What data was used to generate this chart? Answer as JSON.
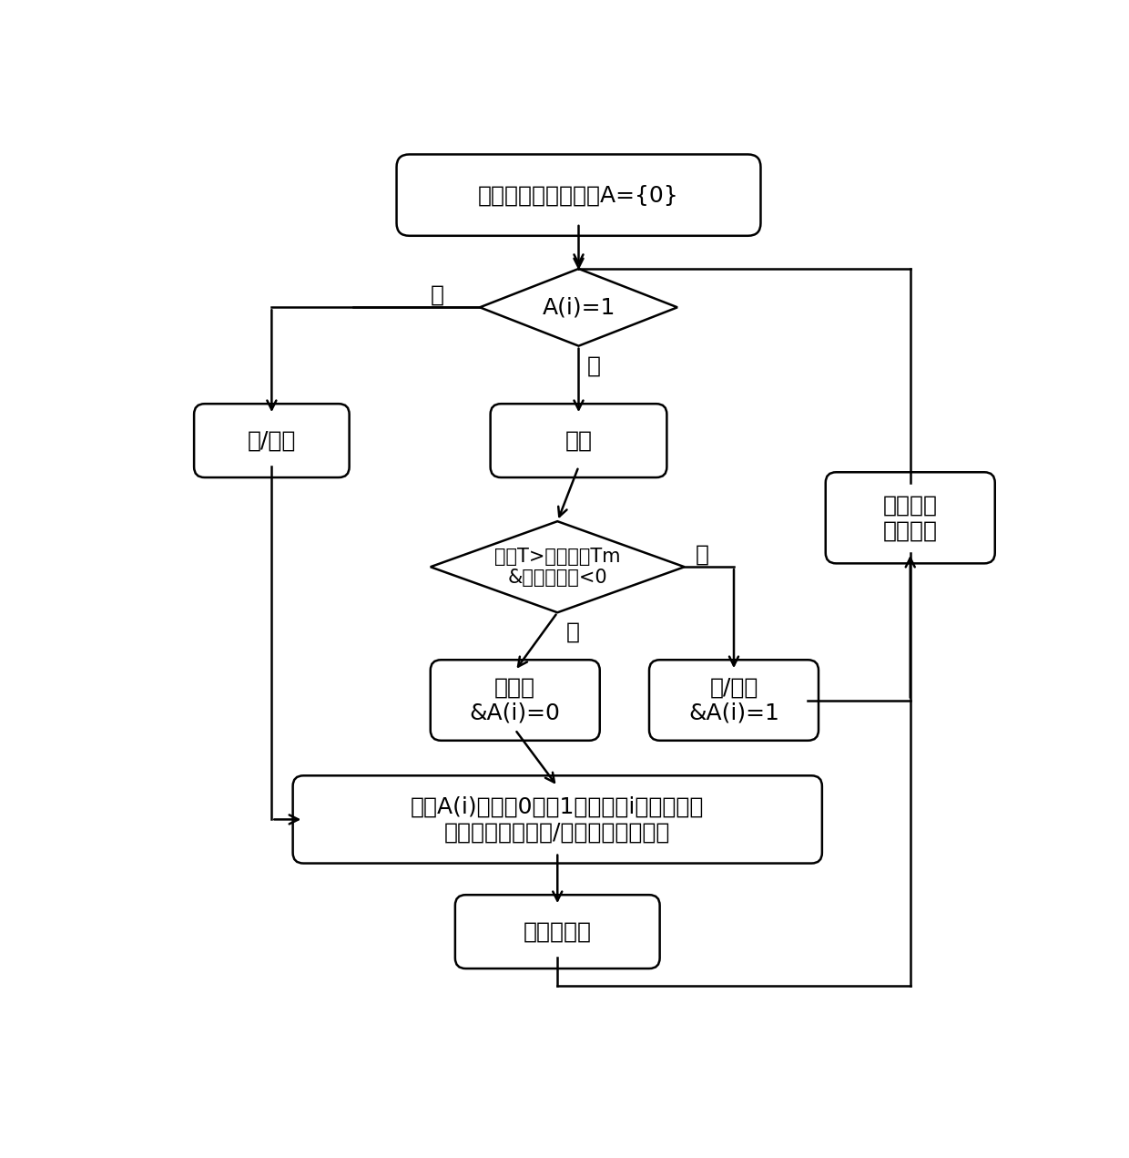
{
  "bg_color": "#ffffff",
  "line_color": "#000000",
  "box_fill": "#ffffff",
  "font_color": "#000000",
  "start_text": "初始化材料属性数组A={0}",
  "diamond1_text": "A(i)=1",
  "solid_liq1_text": "固/液态",
  "powder_text": "粉末",
  "diamond2_text": "温度T>液化温度Tm\n&温度变化率<0",
  "powder_state_text": "粉末态\n&A(i)=0",
  "solid_liq2_text": "固/液态\n&A(i)=1",
  "next_time_text": "下一时刻\n计算结果",
  "assign_text": "根据A(i)的值为0或者1，对单元i赋予粉末金\n属材料属性或者固/液态金属材料属性",
  "compute_text": "进行热计算",
  "yes_text": "是",
  "no_text": "否",
  "font_size": 18,
  "font_size_diamond2": 15,
  "lw": 1.8
}
